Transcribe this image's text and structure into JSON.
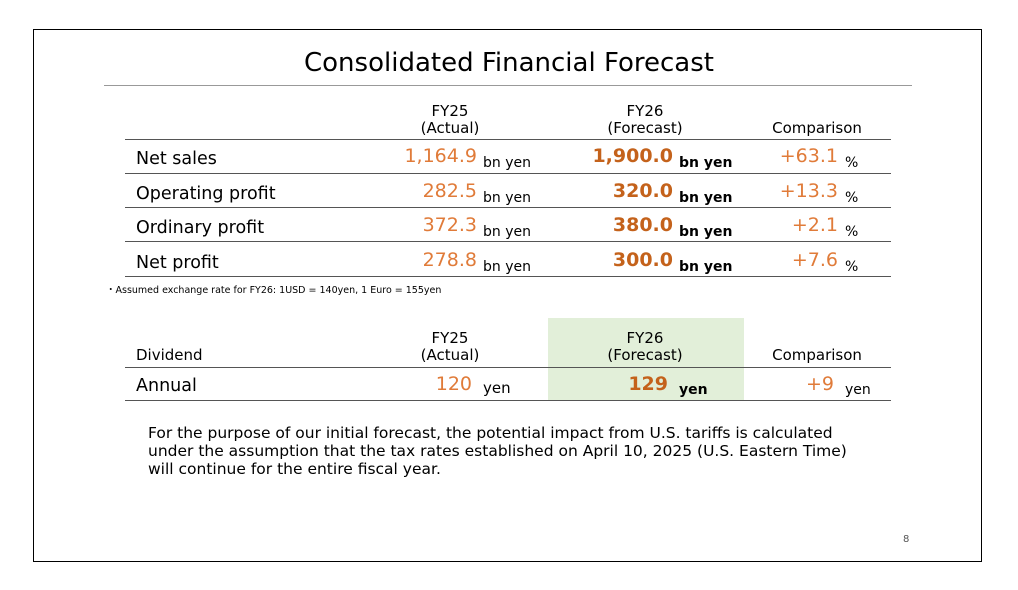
{
  "title": "Consolidated Financial Forecast",
  "headers": {
    "fy25": "FY25",
    "fy25_sub": "(Actual)",
    "fy26": "FY26",
    "fy26_sub": "(Forecast)",
    "comparison": "Comparison"
  },
  "rows": [
    {
      "label": "Net sales",
      "fy25": "1,164.9",
      "fy25_unit": "bn yen",
      "fy26": "1,900.0",
      "fy26_unit": "bn yen",
      "cmp": "+63.1",
      "cmp_unit": "%"
    },
    {
      "label": "Operating profit",
      "fy25": "282.5",
      "fy25_unit": "bn yen",
      "fy26": "320.0",
      "fy26_unit": "bn yen",
      "cmp": "+13.3",
      "cmp_unit": "%"
    },
    {
      "label": "Ordinary profit",
      "fy25": "372.3",
      "fy25_unit": "bn yen",
      "fy26": "380.0",
      "fy26_unit": "bn yen",
      "cmp": "+2.1",
      "cmp_unit": "%"
    },
    {
      "label": "Net profit",
      "fy25": "278.8",
      "fy25_unit": "bn yen",
      "fy26": "300.0",
      "fy26_unit": "bn yen",
      "cmp": "+7.6",
      "cmp_unit": "%"
    }
  ],
  "note": "・Assumed exchange rate for FY26: 1USD = 140yen, 1 Euro = 155yen",
  "dividend": {
    "header_label": "Dividend",
    "fy25": "FY25",
    "fy25_sub": "(Actual)",
    "fy26": "FY26",
    "fy26_sub": "(Forecast)",
    "comparison": "Comparison",
    "row_label": "Annual",
    "fy25_val": "120",
    "fy25_unit": "yen",
    "fy26_val": "129",
    "fy26_unit": "yen",
    "cmp_val": "+9",
    "cmp_unit": "yen"
  },
  "paragraph": "For the purpose of our initial forecast, the potential impact from U.S. tariffs is calculated under the assumption that the tax rates established on April 10, 2025 (U.S. Eastern Time) will continue for the entire fiscal year.",
  "page_number": "8",
  "colors": {
    "value_orange": "#e07b39",
    "bold_orange": "#c4621b",
    "highlight_green": "#e2efd9"
  }
}
